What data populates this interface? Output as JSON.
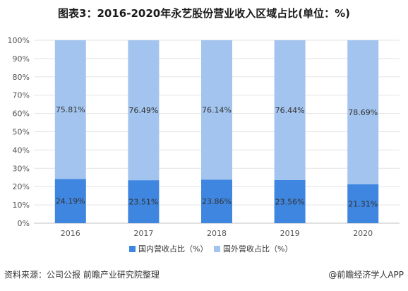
{
  "title": "图表3：2016-2020年永艺股份营业收入区域占比(单位：%)",
  "source": "资料来源：公司公报 前瞻产业研究院整理",
  "brand": "@前瞻经济学人APP",
  "colors": {
    "domestic": "#3f86e0",
    "foreign": "#a3c4ee",
    "grid": "#e3e3e3",
    "axis": "#c0c0c0"
  },
  "chart_data": {
    "type": "bar",
    "stacked": true,
    "categories": [
      "2016",
      "2017",
      "2018",
      "2019",
      "2020"
    ],
    "series": [
      {
        "name": "国内营收占比（%）",
        "values": [
          24.19,
          23.51,
          23.86,
          23.56,
          21.31
        ],
        "labels": [
          "24.19%",
          "23.51%",
          "23.86%",
          "23.56%",
          "21.31%"
        ]
      },
      {
        "name": "国外营收占比（%）",
        "values": [
          75.81,
          76.49,
          76.14,
          76.44,
          78.69
        ],
        "labels": [
          "75.81%",
          "76.49%",
          "76.14%",
          "76.44%",
          "78.69%"
        ]
      }
    ],
    "y_ticks": [
      "0%",
      "10%",
      "20%",
      "30%",
      "40%",
      "50%",
      "60%",
      "70%",
      "80%",
      "90%",
      "100%"
    ],
    "ylim": [
      0,
      100
    ],
    "grid": true,
    "legend_position": "bottom"
  }
}
